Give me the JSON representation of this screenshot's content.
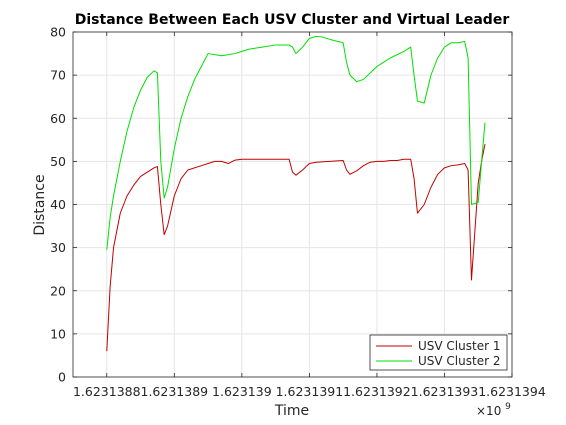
{
  "chart_data": {
    "type": "line",
    "title": "Distance Between Each USV Cluster and Virtual Leader",
    "xlabel": "Time",
    "ylabel": "Distance",
    "x_exponent_label": "×10",
    "x_exponent_power": "9",
    "xlim": [
      1.62313875,
      1.6231394
    ],
    "ylim": [
      0,
      80
    ],
    "x_ticks": [
      1.6231388,
      1.6231389,
      1.623139,
      1.6231391,
      1.6231392,
      1.6231393,
      1.6231394
    ],
    "x_tick_labels": [
      "1.6231388",
      "1.6231389",
      "1.623139",
      "1.6231391",
      "1.6231392",
      "1.6231393",
      "1.6231394"
    ],
    "y_ticks": [
      0,
      10,
      20,
      30,
      40,
      50,
      60,
      70,
      80
    ],
    "y_tick_labels": [
      "0",
      "10",
      "20",
      "30",
      "40",
      "50",
      "60",
      "70",
      "80"
    ],
    "grid": true,
    "legend_position": "bottom-right",
    "series": [
      {
        "name": "USV Cluster 1",
        "color": "#c00000",
        "x": [
          1.6231388,
          1.623138805,
          1.62313881,
          1.62313882,
          1.62313883,
          1.62313884,
          1.62313885,
          1.62313886,
          1.62313887,
          1.623138875,
          1.62313888,
          1.623138885,
          1.62313889,
          1.6231389,
          1.62313891,
          1.62313892,
          1.62313894,
          1.62313895,
          1.62313896,
          1.62313897,
          1.62313898,
          1.62313899,
          1.623139,
          1.62313901,
          1.62313902,
          1.62313903,
          1.62313905,
          1.62313907,
          1.623139075,
          1.62313908,
          1.62313909,
          1.6231391,
          1.62313911,
          1.62313913,
          1.62313915,
          1.623139155,
          1.62313916,
          1.62313917,
          1.62313918,
          1.62313919,
          1.6231392,
          1.62313921,
          1.62313922,
          1.62313923,
          1.62313924,
          1.62313925,
          1.623139255,
          1.62313926,
          1.62313927,
          1.62313928,
          1.62313929,
          1.6231393,
          1.62313931,
          1.62313932,
          1.62313933,
          1.623139335,
          1.62313934,
          1.62313935,
          1.623139355,
          1.62313936
        ],
        "values": [
          6,
          21,
          30,
          38,
          42,
          44.5,
          46.5,
          47.5,
          48.5,
          48.8,
          40,
          33,
          35,
          42,
          46,
          48,
          49,
          49.5,
          50,
          50,
          49.5,
          50.3,
          50.5,
          50.5,
          50.5,
          50.5,
          50.5,
          50.5,
          47.5,
          46.8,
          48,
          49.5,
          49.8,
          50,
          50.2,
          48,
          47,
          47.8,
          49,
          49.8,
          50,
          50,
          50.2,
          50.2,
          50.5,
          50.5,
          46,
          38,
          40,
          44,
          47,
          48.5,
          49,
          49.2,
          49.5,
          48,
          22.5,
          45,
          50,
          54
        ]
      },
      {
        "name": "USV Cluster 2",
        "color": "#00e000",
        "x": [
          1.6231388,
          1.623138805,
          1.62313881,
          1.62313882,
          1.62313883,
          1.62313884,
          1.62313885,
          1.62313886,
          1.62313887,
          1.623138875,
          1.62313888,
          1.623138885,
          1.62313889,
          1.6231389,
          1.62313891,
          1.62313892,
          1.62313893,
          1.62313894,
          1.623138945,
          1.62313895,
          1.62313897,
          1.62313899,
          1.623139,
          1.62313901,
          1.62313903,
          1.62313905,
          1.62313907,
          1.623139075,
          1.62313908,
          1.62313909,
          1.6231391,
          1.62313911,
          1.62313912,
          1.62313913,
          1.62313915,
          1.623139155,
          1.62313916,
          1.62313917,
          1.62313918,
          1.6231392,
          1.62313922,
          1.62313924,
          1.62313925,
          1.623139255,
          1.62313926,
          1.62313927,
          1.62313928,
          1.62313929,
          1.6231393,
          1.62313931,
          1.62313932,
          1.62313933,
          1.623139335,
          1.62313934,
          1.62313935,
          1.623139355,
          1.62313936
        ],
        "values": [
          29.5,
          37,
          42,
          50,
          57,
          62.5,
          66.5,
          69.5,
          71,
          70.5,
          50,
          41.5,
          44,
          53,
          60,
          65,
          69,
          72,
          73.5,
          75,
          74.5,
          75,
          75.5,
          76,
          76.5,
          77,
          77,
          76.5,
          75,
          76.5,
          78.5,
          79,
          78.8,
          78.3,
          77.5,
          73,
          70,
          68.5,
          69,
          72,
          74,
          75.5,
          76.5,
          70,
          64,
          63.5,
          70,
          74,
          76.5,
          77.5,
          77.5,
          77.8,
          74,
          40,
          40.5,
          50,
          59
        ]
      }
    ]
  }
}
